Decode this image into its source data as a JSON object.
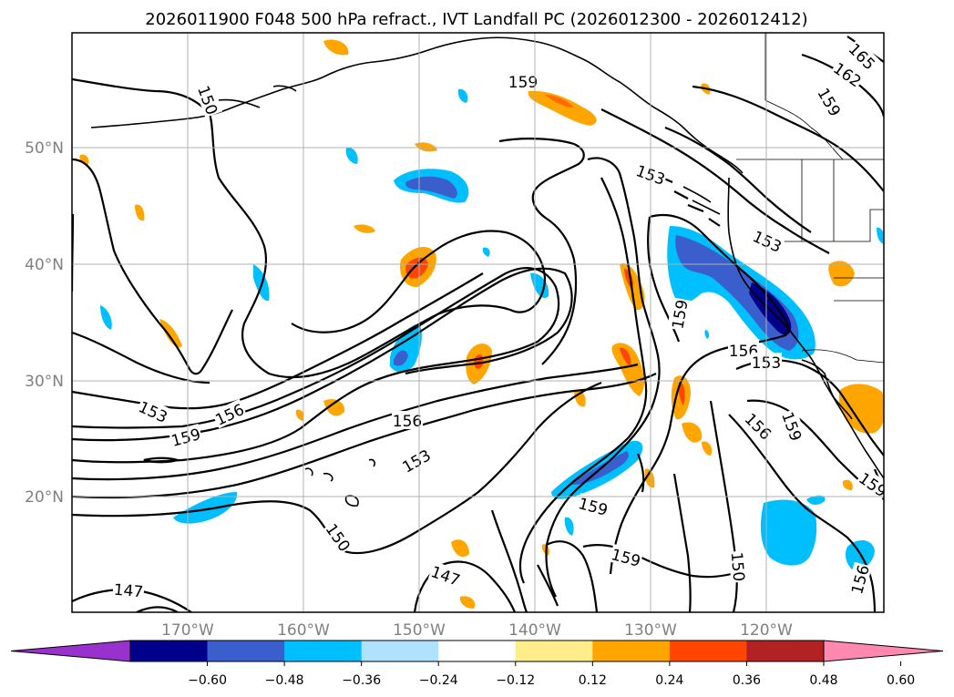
{
  "title": "2026011900 F048 500 hPa refract., IVT Landfall PC (2026012300 - 2026012412)",
  "longitude_labels": [
    "170°W",
    "160°W",
    "150°W",
    "140°W",
    "130°W",
    "120°W"
  ],
  "latitude_labels": [
    "50°N",
    "40°N",
    "30°N",
    "20°N"
  ],
  "colorbar": {
    "colors": [
      "#9932cc",
      "#00008b",
      "#3a5fcd",
      "#00bfff",
      "#b0e2ff",
      "#ffffff",
      "#ffec8b",
      "#ffa500",
      "#ff4500",
      "#b22222",
      "#ff88b0"
    ],
    "tick_labels": [
      "−0.60",
      "−0.48",
      "−0.36",
      "−0.24",
      "−0.12",
      "0.12",
      "0.24",
      "0.36",
      "0.48",
      "0.60"
    ]
  },
  "contour_labels": [
    {
      "text": "159"
    },
    {
      "text": "150"
    },
    {
      "text": "153"
    },
    {
      "text": "162"
    },
    {
      "text": "165"
    },
    {
      "text": "159"
    },
    {
      "text": "153"
    },
    {
      "text": "159"
    },
    {
      "text": "156"
    },
    {
      "text": "153"
    },
    {
      "text": "159"
    },
    {
      "text": "156"
    },
    {
      "text": "156"
    },
    {
      "text": "153"
    },
    {
      "text": "159"
    },
    {
      "text": "150"
    },
    {
      "text": "147"
    },
    {
      "text": "147"
    },
    {
      "text": "159"
    },
    {
      "text": "159"
    },
    {
      "text": "150"
    },
    {
      "text": "156"
    },
    {
      "text": "159"
    },
    {
      "text": "153"
    },
    {
      "text": "156"
    }
  ],
  "colors": {
    "contour": "#000000",
    "grid": "#b0b0b0",
    "axis_label": "#808080"
  }
}
